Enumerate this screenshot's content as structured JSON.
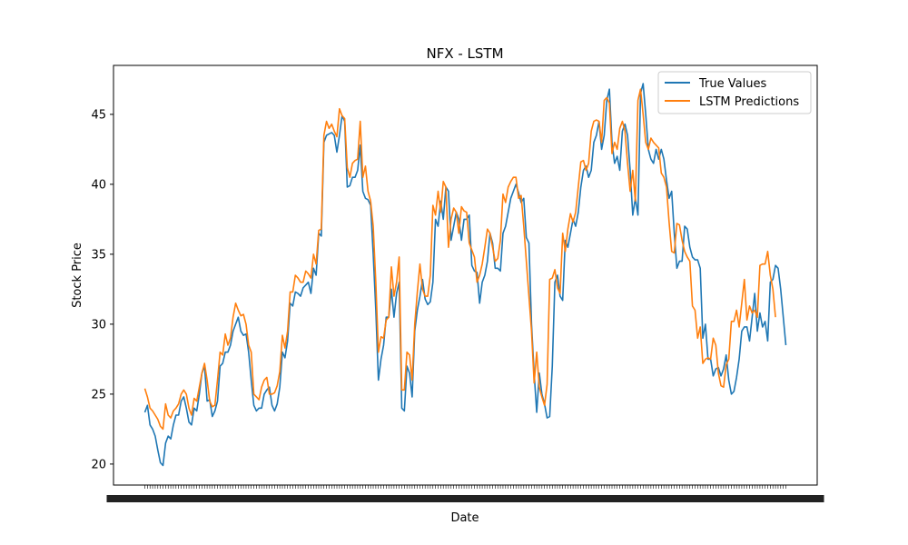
{
  "chart_data": {
    "type": "line",
    "title": "NFX - LSTM",
    "xlabel": "Date",
    "ylabel": "Stock Price",
    "ylim": [
      18.5,
      48.5
    ],
    "yticks": [
      20,
      25,
      30,
      35,
      40,
      45
    ],
    "legend_position": "top-right",
    "grid": false,
    "series": [
      {
        "name": "True Values",
        "color": "#1f77b4",
        "values": [
          23.7,
          24.2,
          22.8,
          22.5,
          22,
          21,
          20.1,
          19.9,
          21.5,
          22,
          21.8,
          22.8,
          23.5,
          23.5,
          24.5,
          24.8,
          24,
          23,
          22.8,
          24,
          23.8,
          25,
          26.5,
          27,
          24.5,
          24.6,
          23.4,
          23.8,
          24.5,
          27,
          27.2,
          28,
          28,
          28.5,
          29.5,
          30,
          30.5,
          29.5,
          29.2,
          29.3,
          28,
          26,
          24.2,
          23.8,
          24,
          24,
          25,
          25.3,
          25.5,
          24.2,
          23.8,
          24.3,
          25.5,
          28,
          27.6,
          28.8,
          31.5,
          31.3,
          32.3,
          32.2,
          32,
          32.6,
          32.8,
          33,
          32.2,
          34,
          33.5,
          36.5,
          36.3,
          43,
          43.5,
          43.6,
          43.7,
          43.5,
          42.3,
          43.5,
          44.9,
          44.5,
          39.8,
          39.9,
          40.5,
          40.5,
          41,
          42.8,
          39.5,
          39,
          38.9,
          38.5,
          35,
          31,
          26,
          27.5,
          28.5,
          30.5,
          30.5,
          32.5,
          30.5,
          32.2,
          33,
          24,
          23.8,
          27,
          26.5,
          24.8,
          29.5,
          31,
          32,
          33.2,
          31.8,
          31.4,
          31.6,
          33,
          37.5,
          37,
          38.8,
          37.5,
          39.8,
          39.5,
          36,
          37,
          38,
          37.5,
          36,
          37.5,
          37.5,
          37.8,
          34.2,
          33.8,
          33.7,
          31.5,
          33,
          33.5,
          34.5,
          36.5,
          35.8,
          34,
          34,
          33.8,
          36.5,
          37,
          38,
          39,
          39.5,
          40,
          39.4,
          38.7,
          39,
          36.2,
          35.8,
          30,
          26.5,
          23.7,
          26.5,
          25,
          24.3,
          23.3,
          23.4,
          27,
          33,
          33.5,
          32,
          31.7,
          36,
          35.5,
          36.5,
          37.5,
          37,
          38,
          39.8,
          41,
          41.3,
          40.5,
          41,
          43,
          43.5,
          44.5,
          42.5,
          43.5,
          46,
          46.8,
          43,
          41.5,
          42,
          41,
          43.8,
          44.3,
          43.5,
          41,
          37.8,
          39,
          37.8,
          46.5,
          47.2,
          45,
          42.5,
          41.8,
          41.5,
          42.5,
          41.8,
          42.5,
          41.8,
          40.3,
          39,
          39.5,
          36.5,
          34,
          34.5,
          34.5,
          37,
          36.8,
          35.5,
          34.8,
          34.6,
          34.6,
          34,
          29,
          30,
          27.5,
          27.5,
          26.3,
          26.8,
          26.9,
          26.3,
          26.8,
          27.8,
          26,
          25,
          25.2,
          26.2,
          27.5,
          29.5,
          29.8,
          29.8,
          28.8,
          30.5,
          32.2,
          29.5,
          30.8,
          29.8,
          30.2,
          28.8,
          33,
          33.2,
          34.2,
          34,
          32.5,
          30.5,
          28.5
        ]
      },
      {
        "name": "LSTM Predictions",
        "color": "#ff7f0e",
        "values": [
          25.4,
          24.8,
          24,
          23.8,
          23.5,
          23.2,
          22.7,
          22.5,
          24.3,
          23.5,
          23.3,
          23.8,
          24,
          24.3,
          25,
          25.3,
          25,
          24,
          23.5,
          24.7,
          24.5,
          25.5,
          26.5,
          27.2,
          26,
          24.5,
          24.1,
          24.2,
          26,
          28,
          27.8,
          29.3,
          28.5,
          29,
          30.5,
          31.5,
          31,
          30.6,
          30.7,
          30,
          28.5,
          28,
          25,
          24.8,
          24.6,
          25.5,
          26,
          26.2,
          25,
          25,
          25.1,
          25.6,
          26.6,
          29.2,
          28.3,
          29.5,
          32.3,
          32.3,
          33.5,
          33.3,
          33,
          33,
          33.8,
          33.6,
          33.3,
          35,
          34.3,
          36.7,
          36.8,
          43.5,
          44.5,
          44,
          44.3,
          43.8,
          43.4,
          45.4,
          44.9,
          44.7,
          41.2,
          40.5,
          41.5,
          41.7,
          41.8,
          44.5,
          40.5,
          41.3,
          39.5,
          38.8,
          37,
          33,
          28,
          29.1,
          29,
          30.3,
          30.5,
          34.1,
          32,
          33,
          34.8,
          25.3,
          25.3,
          28,
          27.8,
          26,
          30,
          32.3,
          34.3,
          32.5,
          32,
          32,
          33.5,
          38.5,
          37.8,
          39.5,
          38,
          40.2,
          39.8,
          35.5,
          37.5,
          38.3,
          38,
          36.5,
          38.4,
          38.1,
          38,
          35.8,
          35.3,
          34.8,
          33,
          33.5,
          34.3,
          35.5,
          36.8,
          36.5,
          35.5,
          34.5,
          34.7,
          36,
          39.3,
          38.7,
          39.8,
          40.2,
          40.5,
          40.5,
          39,
          39.2,
          37,
          34.5,
          32,
          29.5,
          25.8,
          28,
          25.5,
          24.8,
          24.2,
          25.7,
          33.2,
          33.3,
          33.9,
          32.6,
          32.2,
          36.5,
          35.2,
          36.8,
          37.9,
          37.3,
          38,
          39.8,
          41.6,
          41.7,
          41,
          41.5,
          43.8,
          44.5,
          44.6,
          44.5,
          43,
          46,
          46.2,
          45.8,
          42.2,
          43,
          42.5,
          44,
          44.5,
          43.8,
          41.5,
          39.5,
          41,
          38.8,
          46,
          46.8,
          45,
          43,
          42.5,
          43.3,
          43,
          42.8,
          42.6,
          40.8,
          40.5,
          39.8,
          37.3,
          35.2,
          35.1,
          37.2,
          37.1,
          36,
          35.2,
          34.8,
          34.5,
          31.3,
          31,
          29,
          29.8,
          27.2,
          27.5,
          27.6,
          27.5,
          29,
          28.5,
          26.5,
          25.6,
          25.5,
          27.1,
          27.5,
          30.2,
          30.2,
          31,
          29.8,
          31.5,
          33.2,
          30.3,
          31.3,
          30.8,
          31,
          30.5,
          34.2,
          34.3,
          34.3,
          35.2,
          33.5,
          32.5,
          30.5
        ]
      }
    ]
  }
}
